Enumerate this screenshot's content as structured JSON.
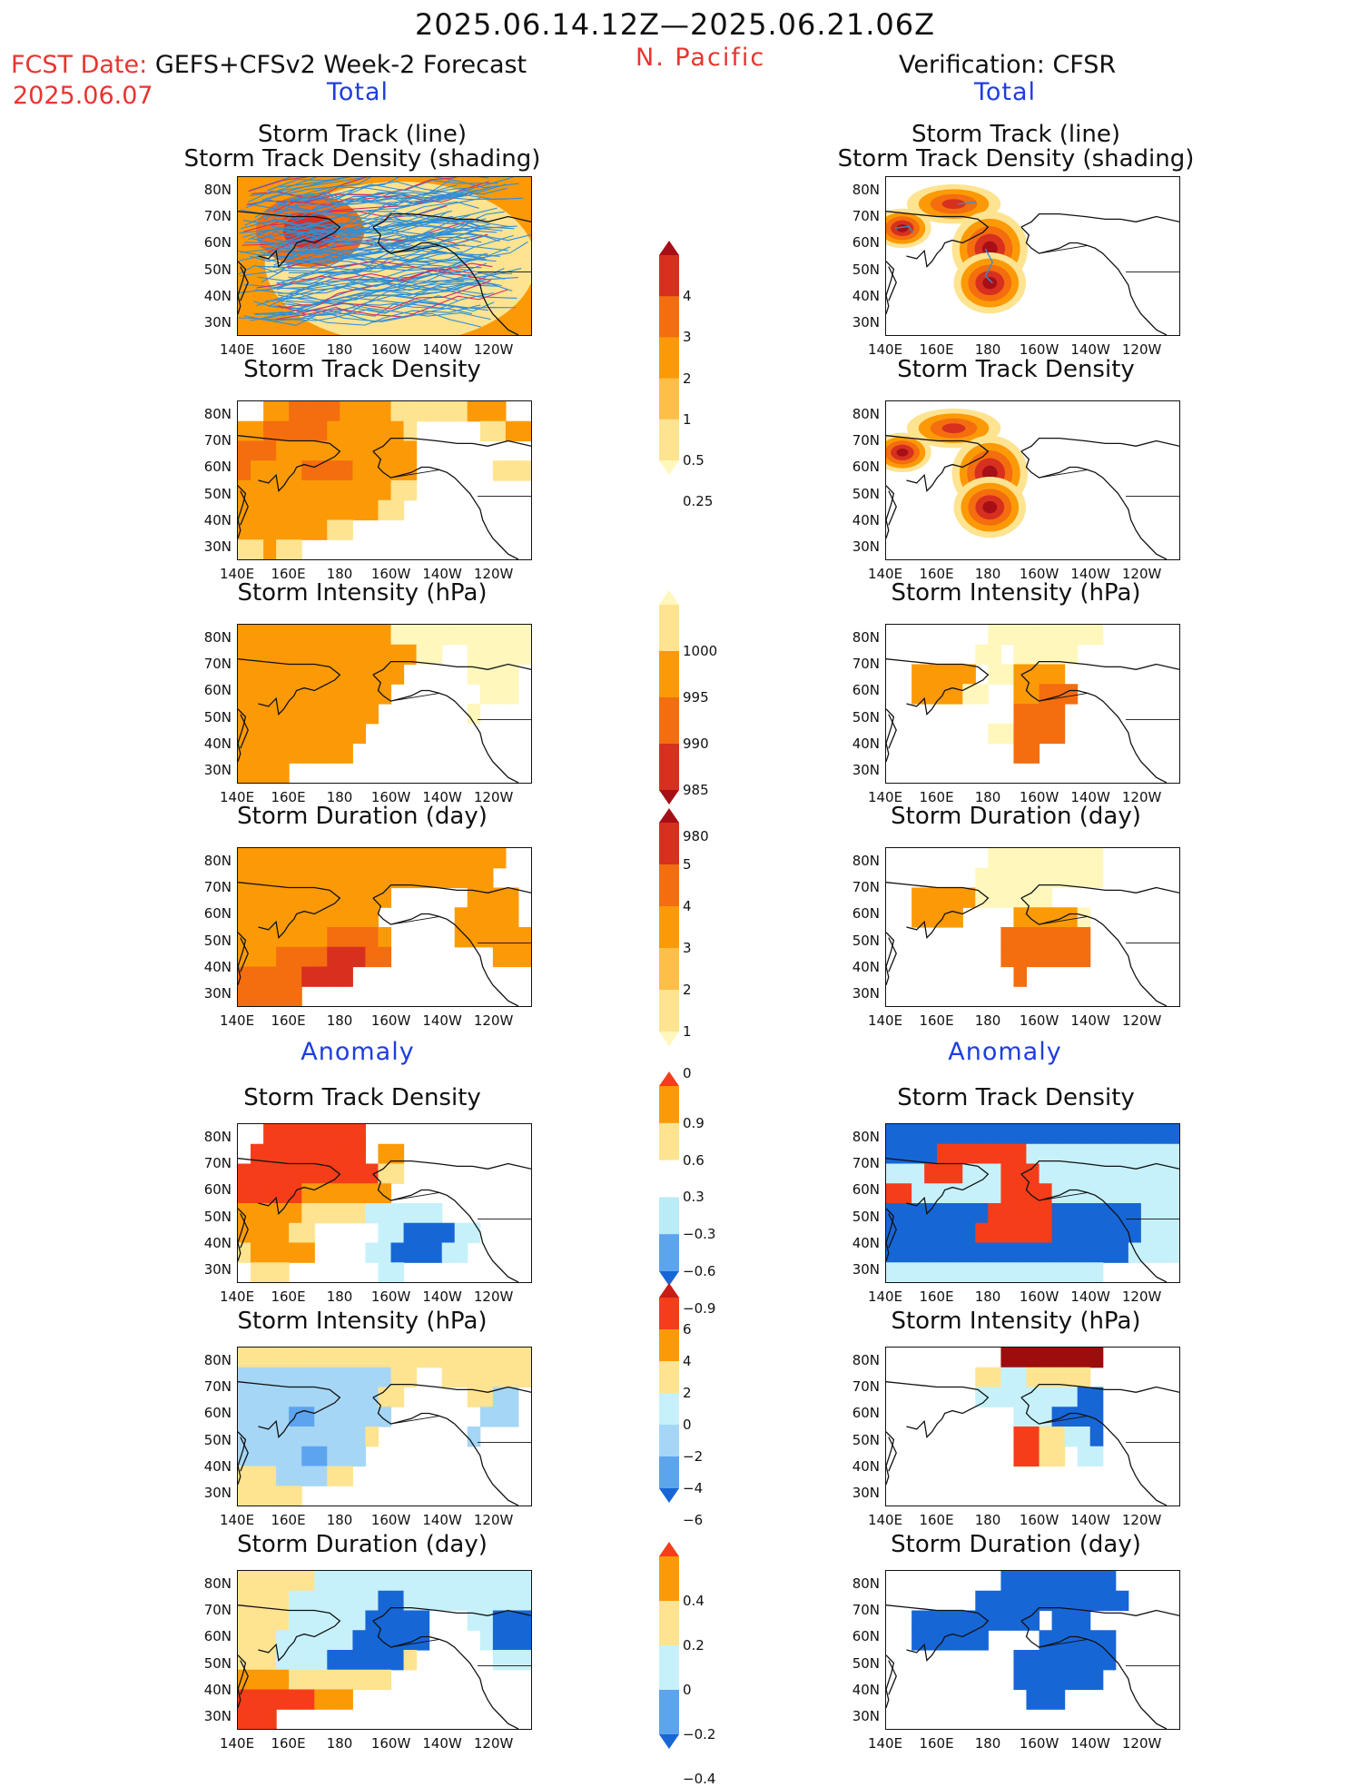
{
  "header": {
    "valid_range": "2025.06.14.12Z—2025.06.21.06Z",
    "fcst_prefix": "FCST Date:",
    "fcst_model": "GEFS+CFSv2 Week-2 Forecast",
    "fcst_date": "2025.06.07",
    "region": "N. Pacific",
    "verification": "Verification: CFSR"
  },
  "sections": {
    "total": "Total",
    "anomaly": "Anomaly"
  },
  "panel_titles": {
    "track": "Storm Track (line)\nStorm Track Density (shading)",
    "density": "Storm Track Density",
    "intensity": "Storm Intensity (hPa)",
    "duration": "Storm Duration (day)"
  },
  "map_axes": {
    "lat_labels": [
      "80N",
      "70N",
      "60N",
      "50N",
      "40N",
      "30N"
    ],
    "lon_labels": [
      "140E",
      "160E",
      "180",
      "160W",
      "140W",
      "120W"
    ]
  },
  "colorbars": [
    {
      "id": "density",
      "ticks": [
        "4",
        "3",
        "2",
        "1",
        "0.5",
        "0.25"
      ],
      "colors": [
        "#a50f15",
        "#d7301f",
        "#f46d0f",
        "#fb9a06",
        "#fdbf47",
        "#fee391",
        "#fff7bc"
      ]
    },
    {
      "id": "intensity",
      "ticks": [
        "1000",
        "995",
        "990",
        "985",
        "980"
      ],
      "colors": [
        "#fff7bc",
        "#fee391",
        "#fb9a06",
        "#f46d0f",
        "#d7301f",
        "#a50f15"
      ]
    },
    {
      "id": "duration",
      "ticks": [
        "5",
        "4",
        "3",
        "2",
        "1",
        "0"
      ],
      "colors": [
        "#a50f15",
        "#d7301f",
        "#f46d0f",
        "#fb9a06",
        "#fdbf47",
        "#fee391",
        "#fff7bc"
      ]
    },
    {
      "id": "anom_density",
      "ticks": [
        "0.9",
        "0.6",
        "0.3",
        "−0.3",
        "−0.6",
        "−0.9"
      ],
      "colors": [
        "#f53d1a",
        "#fb9a06",
        "#fee391",
        "#ffffff",
        "#b9ecf7",
        "#5da4ee",
        "#1766d6"
      ]
    },
    {
      "id": "anom_intensity",
      "ticks": [
        "6",
        "4",
        "2",
        "0",
        "−2",
        "−4",
        "−6"
      ],
      "colors": [
        "#c81d14",
        "#f53d1a",
        "#fb9a06",
        "#fee391",
        "#c6f1fb",
        "#a5d6f5",
        "#5da4ee",
        "#1766d6"
      ]
    },
    {
      "id": "anom_duration",
      "ticks": [
        "0.4",
        "0.2",
        "0",
        "−0.2",
        "−0.4"
      ],
      "colors": [
        "#f53d1a",
        "#fb9a06",
        "#fee391",
        "#c6f1fb",
        "#5da4ee",
        "#1766d6"
      ]
    }
  ],
  "chart_data": [
    {
      "type": "heatmap",
      "panel": "forecast_total_track",
      "series_lines": "storm tracks (blue, red)",
      "lon_range": [
        140,
        -115
      ],
      "lat_range": [
        25,
        85
      ],
      "levels": [
        0.25,
        0.5,
        1,
        2,
        3,
        4
      ],
      "fill_level": 1
    },
    {
      "type": "heatmap",
      "panel": "verification_total_track",
      "lon_range": [
        140,
        -115
      ],
      "lat_range": [
        25,
        85
      ],
      "levels": [
        0.25,
        0.5,
        1,
        2,
        3,
        4
      ],
      "blobs": [
        {
          "lon": 143,
          "lat": 62,
          "peak": 3.5
        },
        {
          "lon": 170,
          "lat": 74,
          "peak": 3
        },
        {
          "lon": 180,
          "lat": 60,
          "peak": 3.5
        },
        {
          "lon": 181,
          "lat": 52,
          "peak": 4
        }
      ]
    },
    {
      "type": "heatmap",
      "panel": "forecast_total_density",
      "levels": [
        0.25,
        0.5,
        1,
        2,
        3,
        4
      ],
      "maxima": [
        {
          "lon": 165,
          "lat": 77,
          "value": 3
        },
        {
          "lon": 145,
          "lat": 65,
          "value": 3
        },
        {
          "lon": 175,
          "lat": 55,
          "value": 2
        }
      ]
    },
    {
      "type": "heatmap",
      "panel": "verification_total_density",
      "levels": [
        0.25,
        0.5,
        1,
        2,
        3,
        4
      ],
      "blobs": [
        {
          "lon": 143,
          "lat": 62,
          "peak": 4
        },
        {
          "lon": 170,
          "lat": 74,
          "peak": 3
        },
        {
          "lon": 180,
          "lat": 58,
          "peak": 4
        },
        {
          "lon": 181,
          "lat": 51,
          "peak": 4
        }
      ]
    },
    {
      "type": "heatmap",
      "panel": "forecast_total_intensity",
      "units": "hPa",
      "levels": [
        980,
        985,
        990,
        995,
        1000
      ],
      "dominant": 992
    },
    {
      "type": "heatmap",
      "panel": "verification_total_intensity",
      "units": "hPa",
      "levels": [
        980,
        985,
        990,
        995,
        1000
      ]
    },
    {
      "type": "heatmap",
      "panel": "forecast_total_duration",
      "units": "day",
      "levels": [
        0,
        1,
        2,
        3,
        4,
        5
      ]
    },
    {
      "type": "heatmap",
      "panel": "verification_total_duration",
      "units": "day",
      "levels": [
        0,
        1,
        2,
        3,
        4,
        5
      ]
    },
    {
      "type": "heatmap",
      "panel": "forecast_anomaly_density",
      "levels": [
        -0.9,
        -0.6,
        -0.3,
        0.3,
        0.6,
        0.9
      ]
    },
    {
      "type": "heatmap",
      "panel": "verification_anomaly_density",
      "levels": [
        -0.9,
        -0.6,
        -0.3,
        0.3,
        0.6,
        0.9
      ]
    },
    {
      "type": "heatmap",
      "panel": "forecast_anomaly_intensity",
      "units": "hPa",
      "levels": [
        -6,
        -4,
        -2,
        0,
        2,
        4,
        6
      ]
    },
    {
      "type": "heatmap",
      "panel": "verification_anomaly_intensity",
      "units": "hPa",
      "levels": [
        -6,
        -4,
        -2,
        0,
        2,
        4,
        6
      ]
    },
    {
      "type": "heatmap",
      "panel": "forecast_anomaly_duration",
      "units": "day",
      "levels": [
        -0.4,
        -0.2,
        0,
        0.2,
        0.4
      ]
    },
    {
      "type": "heatmap",
      "panel": "verification_anomaly_duration",
      "units": "day",
      "levels": [
        -0.4,
        -0.2,
        0,
        0.2,
        0.4
      ]
    }
  ]
}
